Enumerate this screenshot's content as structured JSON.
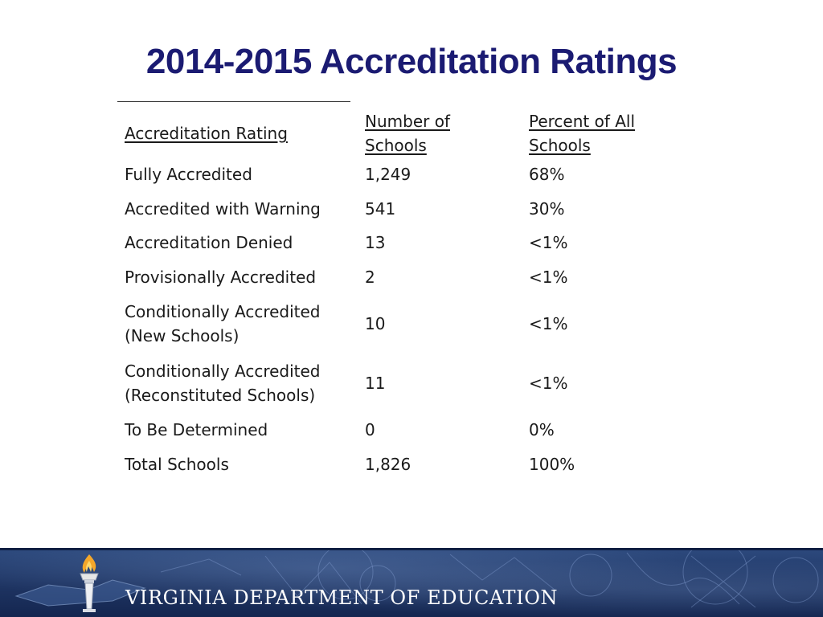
{
  "title": "2014-2015 Accreditation Ratings",
  "table": {
    "headers": {
      "rating": "Accreditation Rating",
      "number_line1": "Number of",
      "number_line2": "Schools",
      "percent_line1": "Percent of All",
      "percent_line2": "Schools"
    },
    "rows": [
      {
        "rating": "Fully Accredited",
        "rating_line2": "",
        "number": "1,249",
        "percent": "68%"
      },
      {
        "rating": "Accredited with Warning",
        "rating_line2": "",
        "number": "541",
        "percent": "30%"
      },
      {
        "rating": "Accreditation Denied",
        "rating_line2": "",
        "number": "13",
        "percent": "<1%"
      },
      {
        "rating": "Provisionally Accredited",
        "rating_line2": "",
        "number": "2",
        "percent": "<1%"
      },
      {
        "rating": "Conditionally Accredited",
        "rating_line2": "(New Schools)",
        "number": "10",
        "percent": "<1%"
      },
      {
        "rating": "Conditionally Accredited",
        "rating_line2": "(Reconstituted Schools)",
        "number": "11",
        "percent": "<1%"
      },
      {
        "rating": "To Be Determined",
        "rating_line2": "",
        "number": "0",
        "percent": "0%"
      },
      {
        "rating": "Total Schools",
        "rating_line2": "",
        "number": "1,826",
        "percent": "100%"
      }
    ]
  },
  "footer": {
    "agency_name": "Virginia Department of Education",
    "logo_icon": "torch-icon"
  },
  "colors": {
    "title": "#1b1b72",
    "banner": "#1e3462",
    "text": "#1a1a1a"
  }
}
